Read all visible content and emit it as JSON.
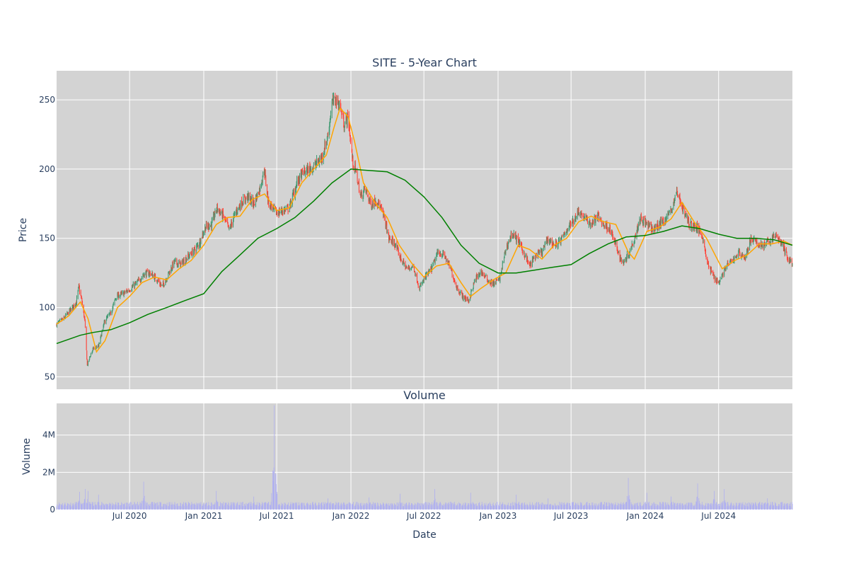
{
  "chart_data": [
    {
      "type": "candlestick",
      "title": "SITE - 5-Year Chart",
      "ylabel": "Price",
      "ylim": [
        41,
        271
      ],
      "yticks": [
        50,
        100,
        150,
        200,
        250
      ],
      "xlim": [
        "2020-01-02",
        "2024-12-31"
      ],
      "xgrid": [
        "2020-07-01",
        "2021-01-01",
        "2021-07-01",
        "2022-01-01",
        "2022-07-01",
        "2023-01-01",
        "2023-07-01",
        "2024-01-01",
        "2024-07-01"
      ],
      "grid": true,
      "colors": {
        "increasing": "#3d9970",
        "decreasing": "#ff4136",
        "ma_short": "#ffa500",
        "ma_long": "#008000"
      },
      "close_path": [
        [
          "2020-01-02",
          88
        ],
        [
          "2020-01-20",
          92
        ],
        [
          "2020-02-05",
          98
        ],
        [
          "2020-02-20",
          104
        ],
        [
          "2020-02-26",
          115
        ],
        [
          "2020-03-05",
          104
        ],
        [
          "2020-03-12",
          90
        ],
        [
          "2020-03-18",
          58
        ],
        [
          "2020-03-24",
          64
        ],
        [
          "2020-04-01",
          70
        ],
        [
          "2020-04-15",
          72
        ],
        [
          "2020-04-30",
          90
        ],
        [
          "2020-05-15",
          96
        ],
        [
          "2020-05-29",
          108
        ],
        [
          "2020-06-15",
          110
        ],
        [
          "2020-07-01",
          113
        ],
        [
          "2020-07-20",
          118
        ],
        [
          "2020-08-05",
          124
        ],
        [
          "2020-08-20",
          125
        ],
        [
          "2020-09-05",
          121
        ],
        [
          "2020-09-20",
          115
        ],
        [
          "2020-10-05",
          124
        ],
        [
          "2020-10-20",
          133
        ],
        [
          "2020-11-05",
          131
        ],
        [
          "2020-11-20",
          136
        ],
        [
          "2020-12-05",
          140
        ],
        [
          "2020-12-20",
          146
        ],
        [
          "2021-01-05",
          158
        ],
        [
          "2021-01-20",
          160
        ],
        [
          "2021-02-03",
          172
        ],
        [
          "2021-02-20",
          165
        ],
        [
          "2021-03-05",
          156
        ],
        [
          "2021-03-20",
          168
        ],
        [
          "2021-04-05",
          176
        ],
        [
          "2021-04-20",
          180
        ],
        [
          "2021-05-05",
          175
        ],
        [
          "2021-05-20",
          186
        ],
        [
          "2021-05-31",
          200
        ],
        [
          "2021-06-10",
          176
        ],
        [
          "2021-06-20",
          172
        ],
        [
          "2021-07-01",
          168
        ],
        [
          "2021-07-15",
          170
        ],
        [
          "2021-08-01",
          172
        ],
        [
          "2021-08-20",
          190
        ],
        [
          "2021-09-05",
          198
        ],
        [
          "2021-09-20",
          200
        ],
        [
          "2021-10-05",
          203
        ],
        [
          "2021-10-20",
          208
        ],
        [
          "2021-11-05",
          224
        ],
        [
          "2021-11-15",
          248
        ],
        [
          "2021-11-25",
          250
        ],
        [
          "2021-12-05",
          246
        ],
        [
          "2021-12-15",
          232
        ],
        [
          "2021-12-25",
          238
        ],
        [
          "2022-01-05",
          206
        ],
        [
          "2022-01-15",
          196
        ],
        [
          "2022-01-25",
          180
        ],
        [
          "2022-02-05",
          186
        ],
        [
          "2022-02-20",
          174
        ],
        [
          "2022-03-05",
          178
        ],
        [
          "2022-03-15",
          172
        ],
        [
          "2022-03-25",
          165
        ],
        [
          "2022-04-05",
          150
        ],
        [
          "2022-04-20",
          146
        ],
        [
          "2022-05-05",
          135
        ],
        [
          "2022-05-20",
          128
        ],
        [
          "2022-06-05",
          130
        ],
        [
          "2022-06-20",
          114
        ],
        [
          "2022-07-05",
          122
        ],
        [
          "2022-07-20",
          128
        ],
        [
          "2022-08-05",
          140
        ],
        [
          "2022-08-20",
          138
        ],
        [
          "2022-09-05",
          128
        ],
        [
          "2022-09-20",
          115
        ],
        [
          "2022-10-05",
          108
        ],
        [
          "2022-10-20",
          105
        ],
        [
          "2022-11-05",
          120
        ],
        [
          "2022-11-20",
          126
        ],
        [
          "2022-12-05",
          120
        ],
        [
          "2022-12-20",
          117
        ],
        [
          "2023-01-05",
          121
        ],
        [
          "2023-01-20",
          142
        ],
        [
          "2023-02-05",
          154
        ],
        [
          "2023-02-20",
          148
        ],
        [
          "2023-03-05",
          140
        ],
        [
          "2023-03-20",
          130
        ],
        [
          "2023-04-05",
          138
        ],
        [
          "2023-04-20",
          140
        ],
        [
          "2023-05-05",
          150
        ],
        [
          "2023-05-20",
          145
        ],
        [
          "2023-06-05",
          148
        ],
        [
          "2023-06-20",
          156
        ],
        [
          "2023-07-05",
          162
        ],
        [
          "2023-07-20",
          170
        ],
        [
          "2023-08-05",
          164
        ],
        [
          "2023-08-20",
          160
        ],
        [
          "2023-09-05",
          166
        ],
        [
          "2023-09-20",
          160
        ],
        [
          "2023-10-05",
          157
        ],
        [
          "2023-10-20",
          145
        ],
        [
          "2023-11-05",
          132
        ],
        [
          "2023-11-20",
          138
        ],
        [
          "2023-12-05",
          150
        ],
        [
          "2023-12-20",
          165
        ],
        [
          "2024-01-05",
          160
        ],
        [
          "2024-01-20",
          156
        ],
        [
          "2024-02-05",
          160
        ],
        [
          "2024-02-20",
          164
        ],
        [
          "2024-03-05",
          170
        ],
        [
          "2024-03-20",
          184
        ],
        [
          "2024-04-05",
          170
        ],
        [
          "2024-04-20",
          160
        ],
        [
          "2024-05-05",
          158
        ],
        [
          "2024-05-20",
          154
        ],
        [
          "2024-06-05",
          130
        ],
        [
          "2024-06-20",
          122
        ],
        [
          "2024-07-01",
          118
        ],
        [
          "2024-07-20",
          130
        ],
        [
          "2024-08-05",
          134
        ],
        [
          "2024-08-20",
          140
        ],
        [
          "2024-09-05",
          136
        ],
        [
          "2024-09-20",
          150
        ],
        [
          "2024-10-05",
          146
        ],
        [
          "2024-10-20",
          145
        ],
        [
          "2024-11-05",
          148
        ],
        [
          "2024-11-20",
          152
        ],
        [
          "2024-12-05",
          146
        ],
        [
          "2024-12-20",
          135
        ],
        [
          "2024-12-31",
          132
        ]
      ],
      "ma_short": [
        [
          "2020-01-02",
          88
        ],
        [
          "2020-02-01",
          94
        ],
        [
          "2020-03-01",
          104
        ],
        [
          "2020-03-20",
          92
        ],
        [
          "2020-04-10",
          68
        ],
        [
          "2020-05-01",
          76
        ],
        [
          "2020-06-01",
          100
        ],
        [
          "2020-07-01",
          108
        ],
        [
          "2020-08-01",
          118
        ],
        [
          "2020-09-01",
          122
        ],
        [
          "2020-10-01",
          120
        ],
        [
          "2020-11-01",
          128
        ],
        [
          "2020-12-01",
          134
        ],
        [
          "2021-01-01",
          145
        ],
        [
          "2021-02-01",
          160
        ],
        [
          "2021-03-01",
          165
        ],
        [
          "2021-04-01",
          166
        ],
        [
          "2021-05-01",
          178
        ],
        [
          "2021-06-01",
          182
        ],
        [
          "2021-07-01",
          170
        ],
        [
          "2021-08-01",
          172
        ],
        [
          "2021-09-01",
          190
        ],
        [
          "2021-10-01",
          200
        ],
        [
          "2021-11-01",
          210
        ],
        [
          "2021-11-20",
          230
        ],
        [
          "2021-12-05",
          244
        ],
        [
          "2021-12-25",
          238
        ],
        [
          "2022-01-10",
          220
        ],
        [
          "2022-02-01",
          190
        ],
        [
          "2022-03-01",
          176
        ],
        [
          "2022-04-01",
          165
        ],
        [
          "2022-05-01",
          145
        ],
        [
          "2022-06-01",
          132
        ],
        [
          "2022-07-01",
          122
        ],
        [
          "2022-08-01",
          130
        ],
        [
          "2022-09-01",
          132
        ],
        [
          "2022-10-01",
          118
        ],
        [
          "2022-10-25",
          108
        ],
        [
          "2022-11-20",
          114
        ],
        [
          "2022-12-20",
          120
        ],
        [
          "2023-01-20",
          125
        ],
        [
          "2023-02-20",
          145
        ],
        [
          "2023-03-20",
          142
        ],
        [
          "2023-04-20",
          135
        ],
        [
          "2023-05-20",
          145
        ],
        [
          "2023-06-20",
          150
        ],
        [
          "2023-07-20",
          162
        ],
        [
          "2023-08-20",
          166
        ],
        [
          "2023-09-20",
          162
        ],
        [
          "2023-10-20",
          160
        ],
        [
          "2023-11-20",
          140
        ],
        [
          "2023-12-05",
          135
        ],
        [
          "2024-01-05",
          155
        ],
        [
          "2024-02-05",
          158
        ],
        [
          "2024-03-05",
          164
        ],
        [
          "2024-04-01",
          176
        ],
        [
          "2024-05-01",
          162
        ],
        [
          "2024-06-01",
          150
        ],
        [
          "2024-07-10",
          128
        ],
        [
          "2024-08-10",
          134
        ],
        [
          "2024-09-10",
          138
        ],
        [
          "2024-10-10",
          146
        ],
        [
          "2024-11-10",
          146
        ],
        [
          "2024-12-10",
          148
        ],
        [
          "2024-12-31",
          145
        ]
      ],
      "ma_long": [
        [
          "2020-01-02",
          74
        ],
        [
          "2020-03-01",
          80
        ],
        [
          "2020-04-01",
          82
        ],
        [
          "2020-05-15",
          84
        ],
        [
          "2020-07-01",
          89
        ],
        [
          "2020-08-15",
          95
        ],
        [
          "2020-10-01",
          100
        ],
        [
          "2020-11-15",
          105
        ],
        [
          "2021-01-01",
          110
        ],
        [
          "2021-02-15",
          126
        ],
        [
          "2021-04-01",
          138
        ],
        [
          "2021-05-15",
          150
        ],
        [
          "2021-07-01",
          157
        ],
        [
          "2021-08-15",
          165
        ],
        [
          "2021-10-01",
          177
        ],
        [
          "2021-11-15",
          190
        ],
        [
          "2022-01-01",
          200
        ],
        [
          "2022-02-15",
          199
        ],
        [
          "2022-04-01",
          198
        ],
        [
          "2022-05-15",
          192
        ],
        [
          "2022-07-01",
          180
        ],
        [
          "2022-08-15",
          165
        ],
        [
          "2022-10-01",
          145
        ],
        [
          "2022-11-15",
          132
        ],
        [
          "2023-01-01",
          125
        ],
        [
          "2023-02-15",
          125
        ],
        [
          "2023-04-01",
          127
        ],
        [
          "2023-05-15",
          129
        ],
        [
          "2023-07-01",
          131
        ],
        [
          "2023-08-15",
          139
        ],
        [
          "2023-10-01",
          146
        ],
        [
          "2023-11-15",
          151
        ],
        [
          "2024-01-01",
          152
        ],
        [
          "2024-02-15",
          155
        ],
        [
          "2024-04-01",
          159
        ],
        [
          "2024-05-15",
          157
        ],
        [
          "2024-07-01",
          153
        ],
        [
          "2024-08-15",
          150
        ],
        [
          "2024-10-01",
          150
        ],
        [
          "2024-11-15",
          149
        ],
        [
          "2024-12-31",
          145
        ]
      ]
    },
    {
      "type": "bar",
      "title": "Volume",
      "xlabel": "Date",
      "ylabel": "Volume",
      "ylim": [
        0,
        5700000
      ],
      "ytick_values": [
        0,
        2000000,
        4000000
      ],
      "yticks": [
        "0",
        "2M",
        "4M"
      ],
      "xticks": [
        {
          "date": "2020-07-01",
          "label": "Jul 2020"
        },
        {
          "date": "2021-01-01",
          "label": "Jan 2021"
        },
        {
          "date": "2021-07-01",
          "label": "Jul 2021"
        },
        {
          "date": "2022-01-01",
          "label": "Jan 2022"
        },
        {
          "date": "2022-07-01",
          "label": "Jul 2022"
        },
        {
          "date": "2023-01-01",
          "label": "Jan 2023"
        },
        {
          "date": "2023-07-01",
          "label": "Jul 2023"
        },
        {
          "date": "2024-01-01",
          "label": "Jan 2024"
        },
        {
          "date": "2024-07-01",
          "label": "Jul 2024"
        }
      ],
      "bar_color": "#b0b0f0",
      "baseline": 280000,
      "spikes": [
        [
          "2020-02-28",
          950000
        ],
        [
          "2020-03-13",
          1100000
        ],
        [
          "2020-03-20",
          1000000
        ],
        [
          "2020-04-15",
          800000
        ],
        [
          "2020-08-05",
          1500000
        ],
        [
          "2021-02-01",
          1000000
        ],
        [
          "2021-05-05",
          700000
        ],
        [
          "2021-06-25",
          5600000
        ],
        [
          "2021-11-05",
          600000
        ],
        [
          "2022-02-15",
          650000
        ],
        [
          "2022-05-03",
          850000
        ],
        [
          "2022-07-28",
          1100000
        ],
        [
          "2022-10-25",
          900000
        ],
        [
          "2023-02-15",
          800000
        ],
        [
          "2023-05-05",
          600000
        ],
        [
          "2023-11-20",
          1700000
        ],
        [
          "2024-01-05",
          900000
        ],
        [
          "2024-03-05",
          700000
        ],
        [
          "2024-05-10",
          1400000
        ],
        [
          "2024-06-20",
          1000000
        ],
        [
          "2024-07-15",
          1100000
        ],
        [
          "2024-10-30",
          600000
        ]
      ]
    }
  ]
}
